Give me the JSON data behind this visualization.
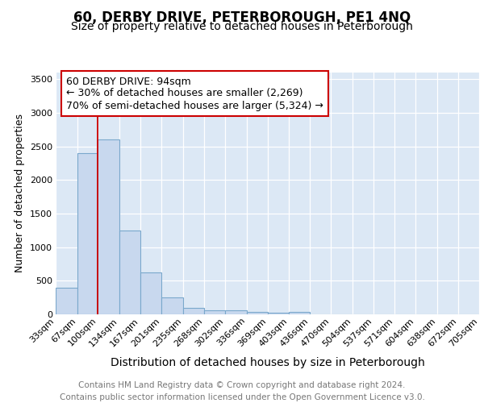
{
  "title": "60, DERBY DRIVE, PETERBOROUGH, PE1 4NQ",
  "subtitle": "Size of property relative to detached houses in Peterborough",
  "xlabel": "Distribution of detached houses by size in Peterborough",
  "ylabel": "Number of detached properties",
  "footer_line1": "Contains HM Land Registry data © Crown copyright and database right 2024.",
  "footer_line2": "Contains public sector information licensed under the Open Government Licence v3.0.",
  "bins": [
    33,
    67,
    100,
    134,
    167,
    201,
    235,
    268,
    302,
    336,
    369,
    403,
    436,
    470,
    504,
    537,
    571,
    604,
    638,
    672,
    705
  ],
  "values": [
    400,
    2400,
    2600,
    1250,
    630,
    250,
    100,
    60,
    55,
    35,
    30,
    35,
    0,
    0,
    0,
    0,
    0,
    0,
    0,
    0
  ],
  "bar_color": "#c8d8ee",
  "bar_edge_color": "#7aa8cc",
  "red_line_x": 100,
  "ann_line1": "60 DERBY DRIVE: 94sqm",
  "ann_line2": "← 30% of detached houses are smaller (2,269)",
  "ann_line3": "70% of semi-detached houses are larger (5,324) →",
  "ylim_max": 3600,
  "yticks": [
    0,
    500,
    1000,
    1500,
    2000,
    2500,
    3000,
    3500
  ],
  "background_color": "#dce8f5",
  "grid_color": "#ffffff",
  "title_fontsize": 12,
  "subtitle_fontsize": 10,
  "ylabel_fontsize": 9,
  "xlabel_fontsize": 10,
  "tick_fontsize": 8,
  "ann_fontsize": 9,
  "footer_fontsize": 7.5
}
